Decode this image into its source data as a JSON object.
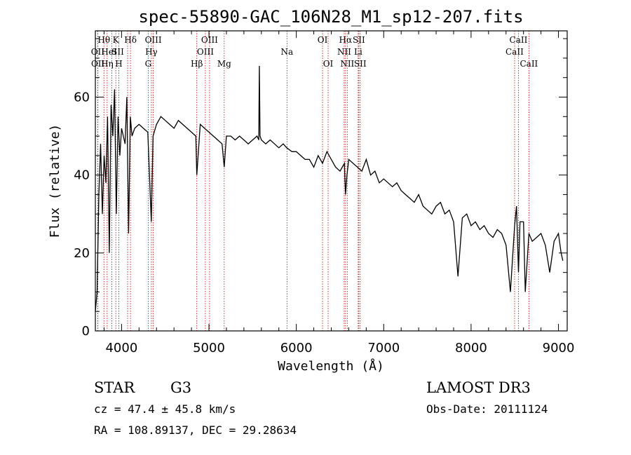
{
  "chart_data": {
    "type": "line",
    "title": "spec-55890-GAC_106N28_M1_sp12-207.fits",
    "xlabel": "Wavelength (Å)",
    "ylabel": "Flux (relative)",
    "xlim": [
      3700,
      9100
    ],
    "ylim": [
      0,
      77
    ],
    "xticks": [
      4000,
      5000,
      6000,
      7000,
      8000,
      9000
    ],
    "yticks": [
      0,
      20,
      40,
      60
    ],
    "series": [
      {
        "name": "spectrum",
        "x": [
          3700,
          3720,
          3740,
          3760,
          3780,
          3800,
          3820,
          3840,
          3860,
          3880,
          3900,
          3920,
          3940,
          3960,
          3980,
          4000,
          4020,
          4040,
          4060,
          4080,
          4100,
          4120,
          4150,
          4200,
          4250,
          4300,
          4340,
          4360,
          4400,
          4450,
          4500,
          4550,
          4600,
          4650,
          4700,
          4750,
          4800,
          4850,
          4861,
          4900,
          4950,
          5000,
          5050,
          5100,
          5150,
          5175,
          5200,
          5250,
          5300,
          5350,
          5400,
          5450,
          5500,
          5550,
          5570,
          5577,
          5585,
          5600,
          5650,
          5700,
          5750,
          5800,
          5850,
          5890,
          5950,
          6000,
          6050,
          6100,
          6150,
          6200,
          6250,
          6300,
          6350,
          6400,
          6450,
          6500,
          6550,
          6563,
          6580,
          6600,
          6650,
          6700,
          6750,
          6800,
          6850,
          6900,
          6950,
          7000,
          7050,
          7100,
          7150,
          7200,
          7250,
          7300,
          7350,
          7400,
          7450,
          7500,
          7550,
          7600,
          7650,
          7700,
          7750,
          7800,
          7850,
          7900,
          7950,
          8000,
          8050,
          8100,
          8150,
          8200,
          8250,
          8300,
          8350,
          8400,
          8450,
          8498,
          8520,
          8542,
          8560,
          8600,
          8620,
          8662,
          8700,
          8750,
          8800,
          8850,
          8900,
          8950,
          9000,
          9030,
          9050
        ],
        "values": [
          5,
          10,
          35,
          48,
          30,
          45,
          38,
          55,
          20,
          58,
          50,
          62,
          30,
          55,
          45,
          52,
          50,
          48,
          60,
          25,
          55,
          50,
          52,
          53,
          52,
          51,
          28,
          50,
          53,
          55,
          54,
          53,
          52,
          54,
          53,
          52,
          51,
          50,
          40,
          53,
          52,
          51,
          50,
          49,
          48,
          42,
          50,
          50,
          49,
          50,
          49,
          48,
          49,
          50,
          49,
          68,
          50,
          49,
          48,
          49,
          48,
          47,
          48,
          47,
          46,
          46,
          45,
          44,
          44,
          42,
          45,
          43,
          46,
          44,
          42,
          41,
          43,
          35,
          40,
          44,
          43,
          42,
          41,
          44,
          40,
          41,
          38,
          39,
          38,
          37,
          38,
          36,
          35,
          34,
          33,
          35,
          32,
          31,
          30,
          32,
          33,
          30,
          31,
          28,
          14,
          29,
          30,
          27,
          28,
          26,
          27,
          25,
          24,
          26,
          25,
          22,
          10,
          27,
          32,
          15,
          28,
          28,
          10,
          25,
          23,
          24,
          25,
          22,
          15,
          23,
          25,
          20,
          18
        ]
      }
    ],
    "lines": [
      {
        "name": "OII",
        "w": 3727,
        "row": 2,
        "dx": 0
      },
      {
        "name": "OII",
        "w": 3729,
        "row": 3,
        "dx": 0
      },
      {
        "name": "Hθ",
        "w": 3798,
        "row": 1,
        "dx": 0
      },
      {
        "name": "Hη",
        "w": 3835,
        "row": 3,
        "dx": 0
      },
      {
        "name": "HeI",
        "w": 3889,
        "row": 2,
        "dx": -4
      },
      {
        "name": "K",
        "w": 3934,
        "row": 1,
        "dx": 0
      },
      {
        "name": "SII",
        "w": 4069,
        "row": 2,
        "dx": -14
      },
      {
        "name": "H",
        "w": 3969,
        "row": 3,
        "dx": 0
      },
      {
        "name": "Hδ",
        "w": 4102,
        "row": 1,
        "dx": 0
      },
      {
        "name": "G",
        "w": 4305,
        "row": 3,
        "dx": 0
      },
      {
        "name": "OIII",
        "w": 4363,
        "row": 1,
        "dx": 0
      },
      {
        "name": "Hγ",
        "w": 4341,
        "row": 2,
        "dx": 0
      },
      {
        "name": "Hβ",
        "w": 4861,
        "row": 3,
        "dx": 0
      },
      {
        "name": "OIII",
        "w": 4959,
        "row": 2,
        "dx": 0
      },
      {
        "name": "OIII",
        "w": 5007,
        "row": 1,
        "dx": 0
      },
      {
        "name": "Mg",
        "w": 5175,
        "row": 3,
        "dx": 0
      },
      {
        "name": "Na",
        "w": 5893,
        "row": 2,
        "dx": 0
      },
      {
        "name": "OI",
        "w": 6300,
        "row": 1,
        "dx": 0
      },
      {
        "name": "OI",
        "w": 6364,
        "row": 3,
        "dx": 0
      },
      {
        "name": "NII",
        "w": 6548,
        "row": 2,
        "dx": 0
      },
      {
        "name": "Hα",
        "w": 6563,
        "row": 1,
        "dx": 0
      },
      {
        "name": "NII",
        "w": 6583,
        "row": 3,
        "dx": 0
      },
      {
        "name": "SII",
        "w": 6716,
        "row": 1,
        "dx": 0
      },
      {
        "name": "Li",
        "w": 6708,
        "row": 2,
        "dx": 0
      },
      {
        "name": "SII",
        "w": 6731,
        "row": 3,
        "dx": 0
      },
      {
        "name": "CaII",
        "w": 8498,
        "row": 2,
        "dx": 0
      },
      {
        "name": "CaII",
        "w": 8542,
        "row": 1,
        "dx": 0
      },
      {
        "name": "CaII",
        "w": 8662,
        "row": 3,
        "dx": 0
      }
    ]
  },
  "info": {
    "class": "STAR",
    "subclass": "G3",
    "cz": "cz = 47.4 ± 45.8 km/s",
    "coords": "RA = 108.89137, DEC =  29.28634",
    "survey": "LAMOST DR3",
    "obs_date": "Obs-Date: 20111124"
  },
  "colors": {
    "spectrum": "#000000",
    "line_markers": "#c00000",
    "axes": "#000000"
  }
}
